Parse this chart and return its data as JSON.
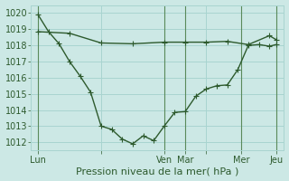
{
  "xlabel": "Pression niveau de la mer( hPa )",
  "background_color": "#cce8e5",
  "grid_color": "#a8d4d0",
  "line_color": "#2d5a2d",
  "text_color": "#2d5a2d",
  "ylim": [
    1011.5,
    1020.5
  ],
  "yticks": [
    1012,
    1013,
    1014,
    1015,
    1016,
    1017,
    1018,
    1019,
    1020
  ],
  "xlim": [
    0,
    72
  ],
  "xtick_positions": [
    2,
    20,
    38,
    44,
    50,
    60,
    70
  ],
  "xtick_labels": [
    "Lun",
    "",
    "Ven",
    "Mar",
    "",
    "Mer",
    "Jeu"
  ],
  "vline_positions": [
    2,
    38,
    44,
    60,
    70
  ],
  "line1_x": [
    2,
    5,
    8,
    11,
    14,
    17,
    20,
    23,
    26,
    29,
    32,
    35,
    38,
    41,
    44,
    47,
    50,
    53,
    56,
    59,
    62,
    65,
    68,
    70
  ],
  "line1_y": [
    1019.9,
    1018.85,
    1018.1,
    1017.0,
    1016.1,
    1015.1,
    1013.0,
    1012.8,
    1012.2,
    1011.9,
    1012.4,
    1012.1,
    1013.0,
    1013.85,
    1013.9,
    1014.85,
    1015.3,
    1015.5,
    1015.55,
    1016.5,
    1018.0,
    1018.05,
    1017.95,
    1018.05
  ],
  "line2_x": [
    2,
    11,
    20,
    29,
    38,
    44,
    50,
    56,
    62,
    68,
    70
  ],
  "line2_y": [
    1018.85,
    1018.75,
    1018.15,
    1018.1,
    1018.2,
    1018.2,
    1018.2,
    1018.25,
    1018.05,
    1018.6,
    1018.35
  ],
  "line1_marker": "+",
  "line2_marker": "+",
  "marker_size": 4,
  "linewidth": 1.0,
  "font_size": 7,
  "xlabel_fontsize": 8
}
